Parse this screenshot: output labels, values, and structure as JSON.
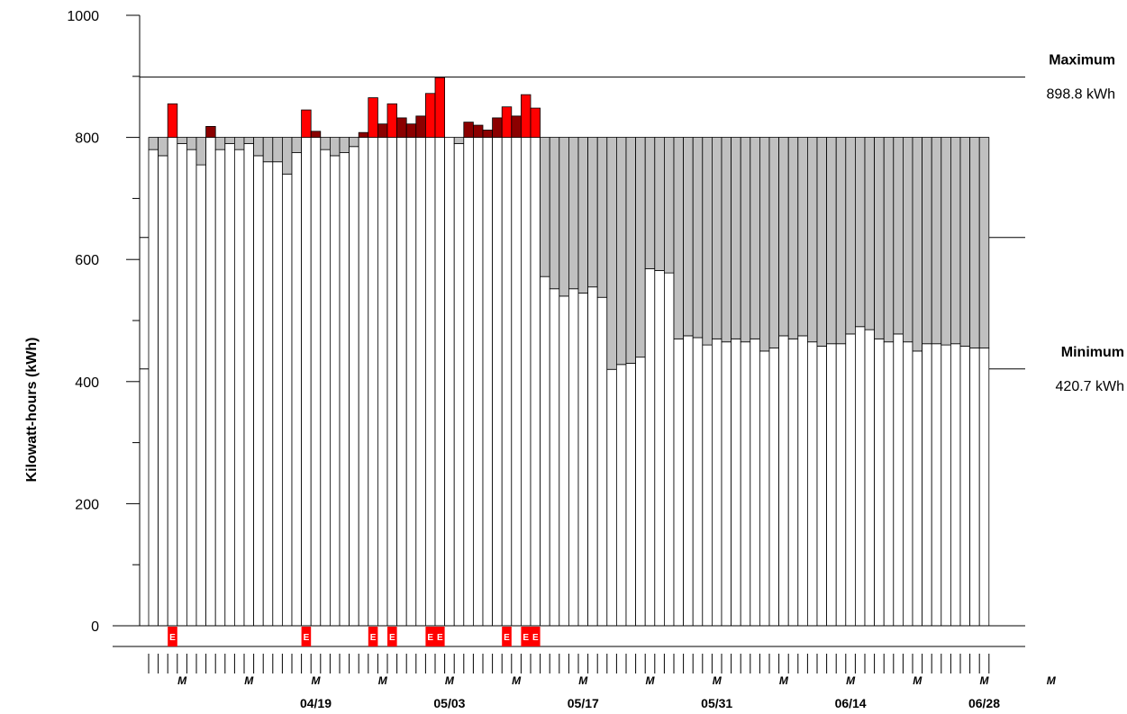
{
  "chart_data": {
    "type": "bar",
    "ylabel": "Kilowatt-hours (kWh)",
    "ylim": [
      0,
      1000
    ],
    "y_ticks": [
      "0",
      "200",
      "400",
      "600",
      "800",
      "1000"
    ],
    "date_labels": [
      "04/19",
      "05/03",
      "05/17",
      "05/31",
      "06/14",
      "06/28"
    ],
    "date_label_day_index": [
      17,
      31,
      45,
      59,
      73,
      87
    ],
    "weekday_marker": "M",
    "weekday_marker_day_index": [
      3,
      10,
      17,
      24,
      31,
      38,
      45,
      52,
      59,
      66,
      73,
      80,
      87,
      94
    ],
    "estimate_marker": "E",
    "baseline": 800,
    "reference_lines": [
      {
        "name": "Maximum",
        "value": 898.8,
        "label": "898.8 kWh"
      },
      {
        "name": "Minimum",
        "value": 420.7,
        "label": "420.7 kWh"
      }
    ],
    "unlabeled_reference_line": 636,
    "colors": {
      "usage": "#ffffff",
      "below_baseline": "#c0c0c0",
      "above_baseline": "#8b0000",
      "above_baseline_estimated": "#ff0000",
      "estimate_marker": "#ff0000"
    },
    "series": [
      {
        "values": [
          780,
          770,
          855,
          790,
          780,
          755,
          818,
          780,
          790,
          780,
          790,
          770,
          760,
          760,
          740,
          775,
          845,
          810,
          780,
          770,
          775,
          785,
          808,
          865,
          822,
          855,
          832,
          822,
          835,
          872,
          898,
          800,
          790,
          825,
          820,
          812,
          832,
          850,
          835,
          870,
          848,
          572,
          552,
          540,
          552,
          545,
          555,
          538,
          420,
          428,
          430,
          440,
          585,
          582,
          578,
          470,
          475,
          472,
          460,
          470,
          465,
          470,
          465,
          470,
          450,
          455,
          475,
          470,
          475,
          465,
          458,
          462,
          462,
          478,
          490,
          485,
          470,
          465,
          478,
          465,
          450,
          462,
          462,
          460,
          462,
          458,
          455,
          455
        ],
        "estimated": [
          false,
          false,
          true,
          false,
          false,
          false,
          false,
          false,
          false,
          false,
          false,
          false,
          false,
          false,
          false,
          false,
          true,
          false,
          false,
          false,
          false,
          false,
          false,
          true,
          false,
          true,
          false,
          false,
          false,
          true,
          true,
          false,
          false,
          false,
          false,
          false,
          false,
          true,
          false,
          true,
          true,
          false,
          false,
          false,
          false,
          false,
          false,
          false,
          false,
          false,
          false,
          false,
          false,
          false,
          false,
          false,
          false,
          false,
          false,
          false,
          false,
          false,
          false,
          false,
          false,
          false,
          false,
          false,
          false,
          false,
          false,
          false,
          false,
          false,
          false,
          false,
          false,
          false,
          false,
          false,
          false,
          false,
          false,
          false,
          false,
          false,
          false,
          false
        ]
      }
    ]
  }
}
